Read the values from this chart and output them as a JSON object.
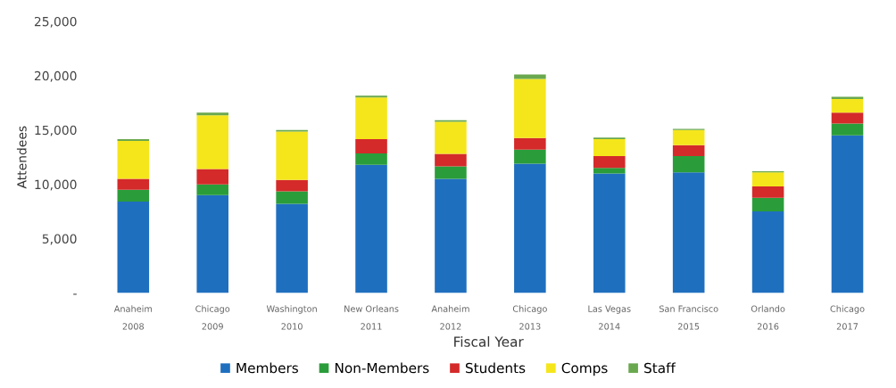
{
  "chart_data": {
    "type": "bar",
    "stacked": true,
    "xlabel": "Fiscal Year",
    "ylabel": "Attendees",
    "categories": [
      "Anaheim\n2008",
      "Chicago\n2009",
      "Washington\n2010",
      "New Orleans\n2011",
      "Anaheim\n2012",
      "Chicago\n2013",
      "Las Vegas\n2014",
      "San Francisco\n2015",
      "Orlando\n2016",
      "Chicago\n2017"
    ],
    "series": [
      {
        "name": "Members",
        "color": "#1f6fbf",
        "values": [
          8400,
          9000,
          8200,
          11800,
          10500,
          11900,
          11000,
          11100,
          7500,
          14500
        ]
      },
      {
        "name": "Non-Members",
        "color": "#2a9d3a",
        "values": [
          1100,
          1000,
          1150,
          1050,
          1150,
          1300,
          500,
          1500,
          1250,
          1100
        ]
      },
      {
        "name": "Students",
        "color": "#d42a2a",
        "values": [
          1000,
          1400,
          1050,
          1300,
          1150,
          1050,
          1100,
          1000,
          1050,
          1000
        ]
      },
      {
        "name": "Comps",
        "color": "#f5e61c",
        "values": [
          3500,
          4950,
          4450,
          3850,
          2950,
          5450,
          1550,
          1400,
          1300,
          1250
        ]
      },
      {
        "name": "Staff",
        "color": "#6aa84f",
        "values": [
          150,
          250,
          150,
          150,
          150,
          400,
          150,
          100,
          100,
          200
        ]
      }
    ],
    "ylim": [
      0,
      25000
    ],
    "yticks": [
      {
        "value": 0,
        "label": "-"
      },
      {
        "value": 5000,
        "label": "5,000"
      },
      {
        "value": 10000,
        "label": "10,000"
      },
      {
        "value": 15000,
        "label": "15,000"
      },
      {
        "value": 20000,
        "label": "20,000"
      },
      {
        "value": 25000,
        "label": "25,000"
      }
    ],
    "grid": false,
    "legend": "bottom"
  }
}
